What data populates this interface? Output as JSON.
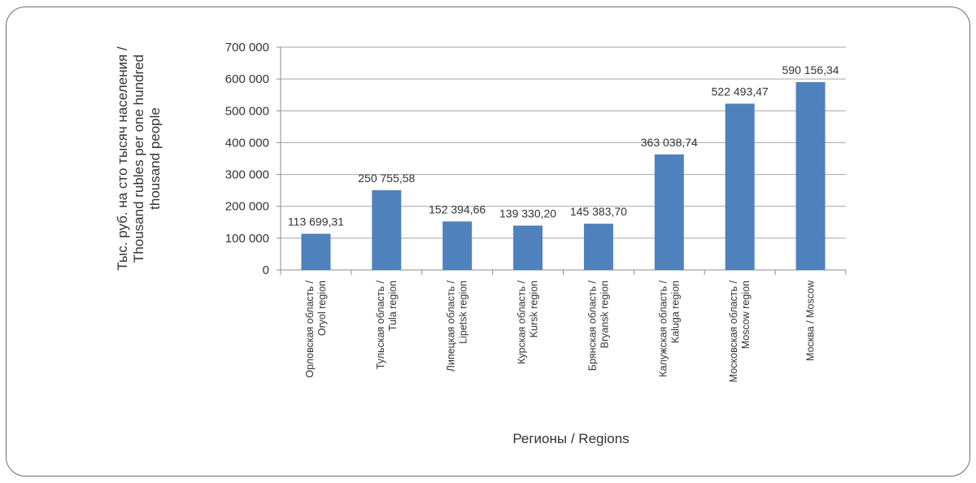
{
  "colors": {
    "bar": "#4f81bd",
    "grid": "#a6a6a6",
    "axis": "#8c8c8c",
    "text": "#333333"
  },
  "chart_data": {
    "type": "bar",
    "title": "",
    "ylabel_lines": [
      "Тыс. руб. на сто тысяч населения /",
      "Thousand  rubles per one hundred",
      "thousand people"
    ],
    "xlabel": "Регионы / Regions",
    "ylim": [
      0,
      700000
    ],
    "yticks": [
      0,
      100000,
      200000,
      300000,
      400000,
      500000,
      600000,
      700000
    ],
    "ytick_labels": [
      "0",
      "100 000",
      "200 000",
      "300 000",
      "400 000",
      "500 000",
      "600 000",
      "700 000"
    ],
    "grid": true,
    "categories": [
      [
        "Орловская область /",
        "Oryol region"
      ],
      [
        "Тульская область /",
        "Tula region"
      ],
      [
        "Липецкая область /",
        "Lipetsk region"
      ],
      [
        "Курская область /",
        "Kursk region"
      ],
      [
        "Брянская область /",
        "Bryansk region"
      ],
      [
        "Калужская область /",
        "Kaluga region"
      ],
      [
        "Московская область /",
        "Moscow region"
      ],
      [
        "Москва / Moscow"
      ]
    ],
    "values": [
      113699.31,
      250755.58,
      152394.66,
      139330.2,
      145383.7,
      363038.74,
      522493.47,
      590156.34
    ],
    "value_labels": [
      "113 699,31",
      "250 755,58",
      "152 394,66",
      "139 330,20",
      "145 383,70",
      "363 038,74",
      "522 493,47",
      "590 156,34"
    ]
  }
}
